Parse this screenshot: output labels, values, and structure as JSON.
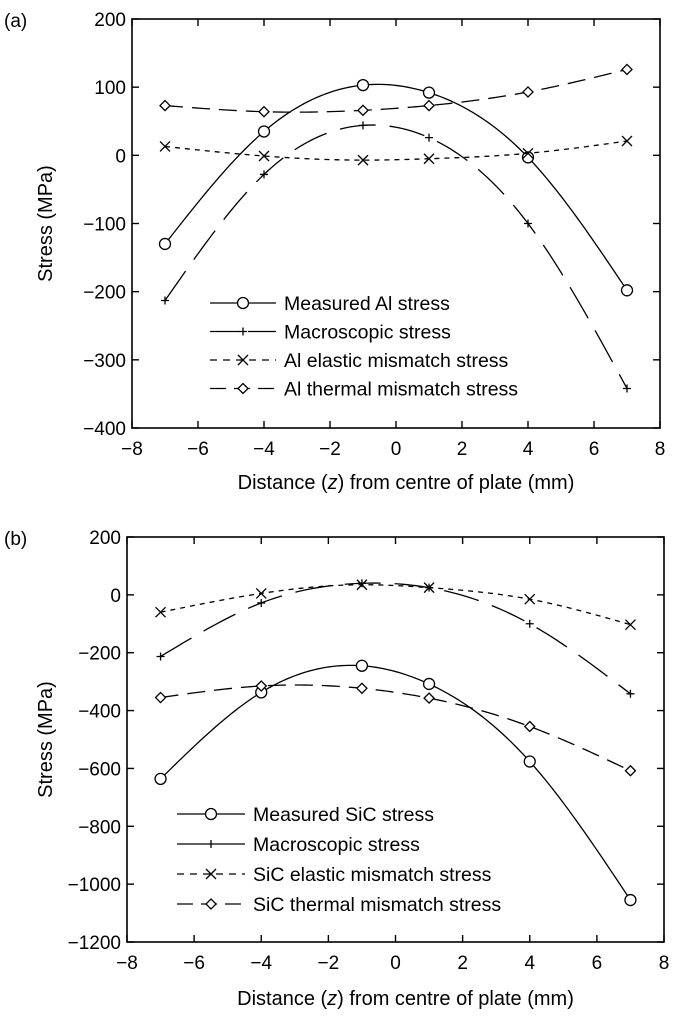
{
  "chart_data": [
    {
      "panel_label": "(a)",
      "type": "line",
      "xlabel_parts": [
        "Distance (",
        "z",
        ") from centre of plate (mm)"
      ],
      "ylabel": "Stress (MPa)",
      "xlim": [
        -8,
        8
      ],
      "ylim": [
        -400,
        200
      ],
      "xticks": [
        -8,
        -6,
        -4,
        -2,
        0,
        2,
        4,
        6,
        8
      ],
      "xtick_labels": [
        "−8",
        "−6",
        "−4",
        "−2",
        "0",
        "2",
        "4",
        "6",
        "8"
      ],
      "yticks": [
        -400,
        -300,
        -200,
        -100,
        0,
        100,
        200
      ],
      "ytick_labels": [
        "−400",
        "−300",
        "−200",
        "−100",
        "0",
        "100",
        "200"
      ],
      "legend_position": "lower-center",
      "series": [
        {
          "name": "Measured Al stress",
          "marker": "circle",
          "dash": "solid",
          "x": [
            -7,
            -4,
            -1,
            1,
            4,
            7
          ],
          "y": [
            -130,
            35,
            103,
            92,
            -3,
            -198
          ]
        },
        {
          "name": "Macroscopic stress",
          "marker": "plus",
          "dash": "longdash",
          "x": [
            -7,
            -4,
            -1,
            1,
            4,
            7
          ],
          "y": [
            -213,
            -28,
            44,
            26,
            -100,
            -342
          ]
        },
        {
          "name": "Al elastic mismatch stress",
          "marker": "x",
          "dash": "shortdash",
          "x": [
            -7,
            -4,
            -1,
            1,
            4,
            7
          ],
          "y": [
            13,
            -1,
            -7,
            -5,
            3,
            21
          ]
        },
        {
          "name": "Al thermal mismatch stress",
          "marker": "diamond",
          "dash": "medium",
          "x": [
            -7,
            -4,
            -1,
            1,
            4,
            7
          ],
          "y": [
            73,
            64,
            66,
            73,
            93,
            126
          ]
        }
      ]
    },
    {
      "panel_label": "(b)",
      "type": "line",
      "xlabel_parts": [
        "Distance (",
        "z",
        ") from centre of plate (mm)"
      ],
      "ylabel": "Stress (MPa)",
      "xlim": [
        -8,
        8
      ],
      "ylim": [
        -1200,
        200
      ],
      "xticks": [
        -8,
        -6,
        -4,
        -2,
        0,
        2,
        4,
        6,
        8
      ],
      "xtick_labels": [
        "−8",
        "−6",
        "−4",
        "−2",
        "0",
        "2",
        "4",
        "6",
        "8"
      ],
      "yticks": [
        -1200,
        -1000,
        -800,
        -600,
        -400,
        -200,
        0,
        200
      ],
      "ytick_labels": [
        "−1200",
        "−1000",
        "−800",
        "−600",
        "−400",
        "−200",
        "0",
        "200"
      ],
      "legend_position": "lower-left",
      "series": [
        {
          "name": "Measured SiC stress",
          "marker": "circle",
          "dash": "solid",
          "x": [
            -7,
            -4,
            -1,
            1,
            4,
            7
          ],
          "y": [
            -636,
            -337,
            -245,
            -308,
            -576,
            -1055
          ]
        },
        {
          "name": "Macroscopic stress",
          "marker": "plus",
          "dash": "longdash",
          "x": [
            -7,
            -4,
            -1,
            1,
            4,
            7
          ],
          "y": [
            -213,
            -28,
            40,
            25,
            -100,
            -342
          ]
        },
        {
          "name": "SiC elastic mismatch stress",
          "marker": "x",
          "dash": "shortdash",
          "x": [
            -7,
            -4,
            -1,
            1,
            4,
            7
          ],
          "y": [
            -60,
            5,
            35,
            25,
            -15,
            -103
          ]
        },
        {
          "name": "SiC thermal mismatch stress",
          "marker": "diamond",
          "dash": "medium",
          "x": [
            -7,
            -4,
            -1,
            1,
            4,
            7
          ],
          "y": [
            -355,
            -315,
            -323,
            -357,
            -455,
            -608
          ]
        }
      ]
    }
  ]
}
